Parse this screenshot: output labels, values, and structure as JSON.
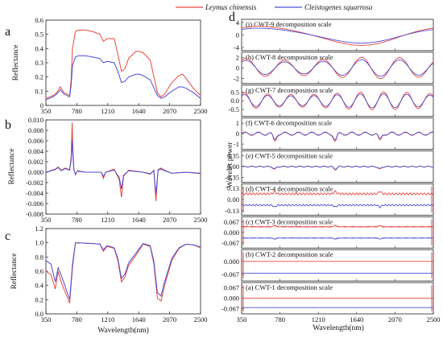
{
  "colors": {
    "red": "#e8473f",
    "blue": "#4b4fd8",
    "axis": "#222222"
  },
  "panel_letters": {
    "a": "a",
    "b": "b",
    "c": "c",
    "d": "d"
  },
  "legend": {
    "series_red": "Leymus chinensis",
    "series_blue": "Cleistogenes squarrosa"
  },
  "chart_data": [
    {
      "panel": "a",
      "type": "line",
      "xlabel": "",
      "ylabel": "Reflectance",
      "xlim": [
        350,
        2500
      ],
      "ylim": [
        0,
        0.6
      ],
      "xticks": [
        "350",
        "780",
        "1210",
        "1640",
        "2070",
        "2500"
      ],
      "yticks": [
        "0",
        "0.1",
        "0.2",
        "0.3",
        "0.4",
        "0.5",
        "0.6"
      ],
      "series": [
        {
          "name": "Leymus chinensis",
          "x": [
            350,
            450,
            500,
            550,
            600,
            680,
            700,
            720,
            760,
            800,
            900,
            1000,
            1100,
            1150,
            1200,
            1300,
            1350,
            1400,
            1450,
            1500,
            1600,
            1650,
            1700,
            1800,
            1900,
            1950,
            2000,
            2100,
            2200,
            2250,
            2300,
            2400,
            2500
          ],
          "y": [
            0.05,
            0.07,
            0.09,
            0.13,
            0.09,
            0.07,
            0.18,
            0.4,
            0.52,
            0.53,
            0.53,
            0.52,
            0.5,
            0.45,
            0.47,
            0.47,
            0.36,
            0.24,
            0.26,
            0.33,
            0.38,
            0.38,
            0.37,
            0.32,
            0.09,
            0.06,
            0.08,
            0.16,
            0.21,
            0.22,
            0.19,
            0.12,
            0.07
          ]
        },
        {
          "name": "Cleistogenes squarrosa",
          "x": [
            350,
            450,
            500,
            550,
            600,
            680,
            700,
            720,
            760,
            800,
            900,
            1000,
            1100,
            1150,
            1200,
            1300,
            1350,
            1400,
            1450,
            1500,
            1600,
            1650,
            1700,
            1800,
            1900,
            1950,
            2000,
            2100,
            2200,
            2250,
            2300,
            2400,
            2500
          ],
          "y": [
            0.04,
            0.06,
            0.08,
            0.11,
            0.08,
            0.06,
            0.14,
            0.28,
            0.34,
            0.35,
            0.35,
            0.34,
            0.33,
            0.3,
            0.31,
            0.3,
            0.24,
            0.16,
            0.17,
            0.2,
            0.22,
            0.22,
            0.21,
            0.18,
            0.07,
            0.05,
            0.06,
            0.1,
            0.13,
            0.13,
            0.12,
            0.09,
            0.05
          ]
        }
      ]
    },
    {
      "panel": "b",
      "type": "line",
      "xlabel": "",
      "ylabel": "Reflectance",
      "xlim": [
        350,
        2500
      ],
      "ylim": [
        -0.008,
        0.01
      ],
      "xticks": [
        "350",
        "780",
        "1210",
        "1640",
        "2070",
        "2500"
      ],
      "yticks": [
        "-0.008",
        "-0.006",
        "-0.004",
        "-0.002",
        "0.000",
        "0.002",
        "0.004",
        "0.006",
        "0.008",
        "0.010"
      ],
      "series": [
        {
          "name": "Leymus chinensis",
          "x": [
            350,
            480,
            520,
            560,
            620,
            680,
            700,
            715,
            725,
            740,
            760,
            790,
            900,
            1120,
            1150,
            1180,
            1300,
            1370,
            1400,
            1430,
            1500,
            1700,
            1800,
            1850,
            1880,
            1910,
            1950,
            2000,
            2100,
            2300,
            2500
          ],
          "y": [
            0.0,
            0.0006,
            0.001,
            0.0004,
            0.0008,
            0.0005,
            0.003,
            0.0095,
            0.0045,
            0.0005,
            -0.0005,
            0.0003,
            0.0,
            0.0,
            -0.0012,
            0.0,
            0.0006,
            -0.0015,
            -0.0048,
            -0.0008,
            0.0004,
            0.0,
            -0.0004,
            0.0004,
            -0.0055,
            0.0005,
            0.0008,
            0.0004,
            -0.0002,
            0.0,
            -0.0003
          ]
        },
        {
          "name": "Cleistogenes squarrosa",
          "x": [
            350,
            480,
            520,
            560,
            620,
            680,
            700,
            715,
            725,
            740,
            760,
            790,
            900,
            1120,
            1150,
            1180,
            1300,
            1370,
            1400,
            1430,
            1500,
            1700,
            1800,
            1850,
            1880,
            1910,
            1950,
            2000,
            2100,
            2300,
            2500
          ],
          "y": [
            0.0,
            0.0005,
            0.0009,
            0.0003,
            0.0007,
            0.0004,
            0.0022,
            0.0062,
            0.003,
            0.0004,
            -0.0004,
            0.0002,
            0.0,
            0.0,
            -0.0008,
            0.0,
            0.0004,
            -0.001,
            -0.0032,
            -0.0006,
            0.0003,
            0.0,
            -0.0003,
            0.0003,
            -0.0042,
            0.0004,
            0.0006,
            0.0003,
            -0.0002,
            0.0,
            -0.0002
          ]
        }
      ]
    },
    {
      "panel": "c",
      "type": "line",
      "xlabel": "Wavelength(nm)",
      "ylabel": "Reflectance",
      "xlim": [
        350,
        2500
      ],
      "ylim": [
        0,
        1.2
      ],
      "xticks": [
        "350",
        "780",
        "1210",
        "1640",
        "2070",
        "2500"
      ],
      "yticks": [
        "0.0",
        "0.2",
        "0.4",
        "0.6",
        "0.8",
        "1.0",
        "1.2"
      ],
      "series": [
        {
          "name": "Leymus chinensis",
          "x": [
            350,
            420,
            480,
            520,
            560,
            620,
            680,
            720,
            760,
            800,
            1000,
            1100,
            1150,
            1200,
            1300,
            1350,
            1400,
            1450,
            1500,
            1600,
            1700,
            1800,
            1850,
            1900,
            1950,
            2000,
            2100,
            2200,
            2300,
            2400,
            2500
          ],
          "y": [
            0.6,
            0.55,
            0.35,
            0.6,
            0.45,
            0.3,
            0.15,
            0.65,
            1.0,
            1.0,
            0.99,
            0.98,
            0.88,
            0.95,
            0.92,
            0.75,
            0.45,
            0.52,
            0.68,
            0.82,
            0.98,
            0.95,
            0.7,
            0.22,
            0.18,
            0.4,
            0.75,
            0.92,
            0.98,
            0.97,
            0.93
          ]
        },
        {
          "name": "Cleistogenes squarrosa",
          "x": [
            350,
            420,
            480,
            520,
            560,
            620,
            680,
            720,
            760,
            800,
            1000,
            1100,
            1150,
            1200,
            1300,
            1350,
            1400,
            1450,
            1500,
            1600,
            1700,
            1800,
            1850,
            1900,
            1950,
            2000,
            2100,
            2200,
            2300,
            2400,
            2500
          ],
          "y": [
            0.75,
            0.7,
            0.45,
            0.65,
            0.55,
            0.38,
            0.2,
            0.7,
            1.0,
            1.0,
            0.99,
            0.98,
            0.9,
            0.96,
            0.93,
            0.78,
            0.5,
            0.56,
            0.72,
            0.85,
            0.99,
            0.96,
            0.74,
            0.3,
            0.25,
            0.45,
            0.78,
            0.93,
            0.98,
            0.97,
            0.94
          ]
        }
      ]
    },
    {
      "panel": "d",
      "type": "line",
      "xlabel": "Wavelength(nm)",
      "ylabel": "Wavelet power",
      "xlim": [
        350,
        2500
      ],
      "xticks": [
        "350",
        "780",
        "1210",
        "1640",
        "2070",
        "2500"
      ],
      "subplots": [
        {
          "title": "(i) CWT-9 decomposition scale",
          "yticks": [
            "4",
            "0",
            "-4"
          ],
          "ylim": [
            -5,
            5
          ],
          "amp": 3.0,
          "period": 2100,
          "shape": "smooth"
        },
        {
          "title": "(h) CWT-8 decomposition scale",
          "yticks": [
            "2",
            "0",
            "-2"
          ],
          "ylim": [
            -3,
            3
          ],
          "amp": 1.8,
          "period": 430,
          "shape": "smooth"
        },
        {
          "title": "(g) CWT-7 decomposition scale",
          "yticks": [
            "0.5",
            "0.0",
            "-0.5"
          ],
          "ylim": [
            -0.9,
            0.9
          ],
          "amp": 0.45,
          "period": 260,
          "shape": "smooth"
        },
        {
          "title": "(f) CWT-6 decomposition scale",
          "yticks": [
            "1",
            "0",
            "-1"
          ],
          "ylim": [
            -1.5,
            1.5
          ],
          "amp": 0.4,
          "period": 150,
          "shape": "spiky"
        },
        {
          "title": "(e) CWT-5 decomposition scale",
          "yticks": [
            "0.35",
            "0.00",
            "-0.35"
          ],
          "ylim": [
            -0.5,
            0.5
          ],
          "amp": 0.05,
          "period": 90,
          "shape": "spiky"
        },
        {
          "title": "(d) CWT-4 decomposition scale",
          "yticks": [
            "0.13",
            "0.00",
            "-0.13"
          ],
          "ylim": [
            -0.18,
            0.18
          ],
          "amp": 0.01,
          "period": 40,
          "shape": "offset"
        },
        {
          "title": "(c) CWT-3 decomposition scale",
          "yticks": [
            "0.067",
            "0.000",
            "-0.067"
          ],
          "ylim": [
            -0.1,
            0.1
          ],
          "amp": 0.003,
          "period": 20,
          "shape": "offset"
        },
        {
          "title": "(b) CWT-2 decomposition scale",
          "yticks": [
            "0.000",
            "-0.067"
          ],
          "ylim": [
            -0.1,
            0.06
          ],
          "amp": 0.0,
          "period": 10,
          "shape": "flat"
        },
        {
          "title": "(a) CWT-1 decomposition scale",
          "yticks": [
            "0.067",
            "0.000",
            "-0.067"
          ],
          "ylim": [
            -0.1,
            0.1
          ],
          "amp": 0.0,
          "period": 5,
          "shape": "flat"
        }
      ]
    }
  ]
}
